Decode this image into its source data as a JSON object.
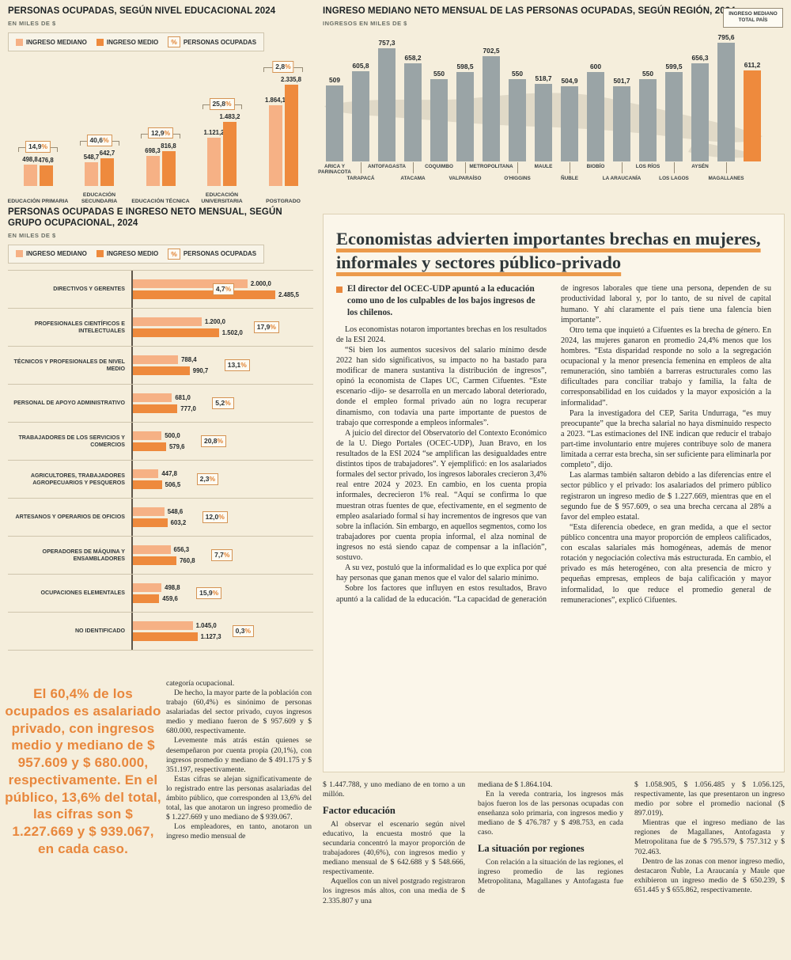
{
  "symbols": {
    "percent": "%"
  },
  "colors": {
    "mediano": "#f6b185",
    "medio": "#ee8a3d",
    "gray": "#9aa4a6",
    "accent": "#e8873c"
  },
  "chart_data": [
    {
      "id": "education",
      "type": "bar",
      "title": "PERSONAS OCUPADAS, SEGÚN NIVEL EDUCACIONAL 2024",
      "subtitle": "EN MILES DE $",
      "legend_pct": "PERSONAS OCUPADAS",
      "categories": [
        "EDUCACIÓN PRIMARIA",
        "EDUCACIÓN SECUNDARIA",
        "EDUCACIÓN TÉCNICA",
        "EDUCACIÓN UNIVERSITARIA",
        "POSTGRADO"
      ],
      "series": [
        {
          "name": "INGRESO MEDIANO",
          "values": [
            498.8,
            548.7,
            698.3,
            1121.2,
            1864.1
          ],
          "labels": [
            "498,8",
            "548,7",
            "698,3",
            "1.121,2",
            "1.864,1"
          ]
        },
        {
          "name": "INGRESO MEDIO",
          "values": [
            476.8,
            642.7,
            816.8,
            1483.2,
            2335.8
          ],
          "labels": [
            "476,8",
            "642,7",
            "816,8",
            "1.483,2",
            "2.335,8"
          ]
        }
      ],
      "pct": [
        "14,9%",
        "40,6%",
        "12,9%",
        "25,8%",
        "2,8%"
      ],
      "ylim": [
        0,
        2335.8
      ]
    },
    {
      "id": "regions",
      "type": "bar",
      "title": "INGRESO MEDIANO NETO MENSUAL DE LAS PERSONAS OCUPADAS, SEGÚN REGIÓN, 2024",
      "subtitle": "INGRESOS EN MILES DE $",
      "callout": "INGRESO MEDIANO TOTAL PAÍS",
      "categories": [
        "ARICA Y PARINACOTA",
        "TARAPACÁ",
        "ANTOFAGASTA",
        "ATACAMA",
        "COQUIMBO",
        "VALPARAÍSO",
        "METROPOLITANA",
        "O'HIGGINS",
        "MAULE",
        "ÑUBLE",
        "BIOBÍO",
        "LA ARAUCANÍA",
        "LOS RÍOS",
        "LOS LAGOS",
        "AYSÉN",
        "MAGALLANES",
        "TOTAL PAÍS"
      ],
      "values": [
        509,
        605.8,
        757.3,
        658.2,
        550,
        598.5,
        702.5,
        550,
        518.7,
        504.9,
        600,
        501.7,
        550,
        599.5,
        656.3,
        795.6,
        611.2
      ],
      "labels": [
        "509",
        "605,8",
        "757,3",
        "658,2",
        "550",
        "598,5",
        "702,5",
        "550",
        "518,7",
        "504,9",
        "600",
        "501,7",
        "550",
        "599,5",
        "656,3",
        "795,6",
        "611,2"
      ],
      "highlight_index": 16,
      "ylim": [
        0,
        800
      ]
    },
    {
      "id": "occupations",
      "type": "bar-horizontal",
      "title": "PERSONAS OCUPADAS E INGRESO NETO MENSUAL, SEGÚN GRUPO OCUPACIONAL, 2024",
      "subtitle": "EN MILES DE $",
      "legend_pct": "PERSONAS OCUPADAS",
      "categories": [
        "DIRECTIVOS Y GERENTES",
        "PROFESIONALES CIENTÍFICOS E INTELECTUALES",
        "TÉCNICOS Y PROFESIONALES DE NIVEL MEDIO",
        "PERSONAL DE APOYO ADMINISTRATIVO",
        "TRABAJADORES DE LOS SERVICIOS Y COMERCIOS",
        "AGRICULTORES, TRABAJADORES AGROPECUARIOS Y PESQUEROS",
        "ARTESANOS Y OPERARIOS DE OFICIOS",
        "OPERADORES DE MÁQUINA Y ENSAMBLADORES",
        "OCUPACIONES ELEMENTALES",
        "NO IDENTIFICADO"
      ],
      "series": [
        {
          "name": "INGRESO MEDIANO",
          "values": [
            2000.0,
            1200.0,
            788.4,
            681.0,
            500.0,
            447.8,
            548.6,
            656.3,
            498.8,
            1045.0
          ],
          "labels": [
            "2.000,0",
            "1.200,0",
            "788,4",
            "681,0",
            "500,0",
            "447,8",
            "548,6",
            "656,3",
            "498,8",
            "1.045,0"
          ]
        },
        {
          "name": "INGRESO MEDIO",
          "values": [
            2485.5,
            1502.0,
            990.7,
            777.0,
            579.6,
            506.5,
            603.2,
            760.8,
            459.6,
            1127.3
          ],
          "labels": [
            "2.485,5",
            "1.502,0",
            "990,7",
            "777,0",
            "579,6",
            "506,5",
            "603,2",
            "760,8",
            "459,6",
            "1.127,3"
          ]
        }
      ],
      "pct": [
        "4,7%",
        "17,9%",
        "13,1%",
        "5,2%",
        "20,8%",
        "2,3%",
        "12,0%",
        "7,7%",
        "15,9%",
        "0,3%"
      ],
      "xlim": [
        0,
        2485.5
      ]
    }
  ],
  "article": {
    "headline": "Economistas advierten importantes brechas en mujeres, informales y sectores público-privado",
    "lead": "El director del OCEC-UDP apuntó a la educación como uno de los culpables de los bajos ingresos de los chilenos.",
    "paragraphs": [
      "Los economistas notaron importantes brechas en los resultados de la ESI 2024.",
      "“Si bien los aumentos sucesivos del salario mínimo desde 2022 han sido significativos, su impacto no ha bastado para modificar de manera sustantiva la distribución de ingresos”, opinó la economista de Clapes UC, Carmen Cifuentes. “Este escenario -dijo- se desarrolla en un mercado laboral deteriorado, donde el empleo formal privado aún no logra recuperar dinamismo, con todavía una parte importante de puestos de trabajo que corresponde a empleos informales”.",
      "A juicio del director del Observatorio del Contexto Económico de la U. Diego Portales (OCEC-UDP), Juan Bravo, en los resultados de la ESI 2024 “se amplifican las desigualdades entre distintos tipos de trabajadores”. Y ejemplificó: en los asalariados formales del sector privado, los ingresos laborales crecieron 3,4% real entre 2024 y 2023. En cambio, en los cuenta propia informales, decrecieron 1% real. “Aquí se confirma lo que muestran otras fuentes de que, efectivamente, en el segmento de empleo asalariado formal sí hay incrementos de ingresos que van sobre la inflación. Sin embargo, en aquellos segmentos, como los trabajadores por cuenta propia informal, el alza nominal de ingresos no está siendo capaz de compensar a la inflación”, sostuvo.",
      "A su vez, postuló que la informalidad es lo que explica por qué hay personas que ganan menos que el valor del salario mínimo.",
      "Sobre los factores que influyen en estos resultados, Bravo apuntó a la calidad de la educación. “La capacidad de generación de ingresos laborales que tiene una persona, dependen de su productividad laboral y, por lo tanto, de su nivel de capital humano. Y ahí claramente el país tiene una falencia bien importante”.",
      "Otro tema que inquietó a Cifuentes es la brecha de género. En 2024, las mujeres ganaron en promedio 24,4% menos que los hombres. “Esta disparidad responde no solo a la segregación ocupacional y la menor presencia femenina en empleos de alta remuneración, sino también a barreras estructurales como las dificultades para conciliar trabajo y familia, la falta de corresponsabilidad en los cuidados y la mayor exposición a la informalidad”.",
      "Para la investigadora del CEP, Sarita Undurraga, “es muy preocupante” que la brecha salarial no haya disminuido respecto a 2023. “Las estimaciones del INE indican que reducir el trabajo part-time involuntario entre mujeres contribuye solo de manera limitada a cerrar esta brecha, sin ser suficiente para eliminarla por completo”, dijo.",
      "Las alarmas también saltaron debido a las diferencias entre el sector público y el privado: los asalariados del primero público registraron un ingreso medio de $ 1.227.669, mientras que en el segundo fue de $ 957.609, o sea una brecha cercana al 28% a favor del empleo estatal.",
      "“Esta diferencia obedece, en gran medida, a que el sector público concentra una mayor proporción de empleos calificados, con escalas salariales más homogéneas, además de menor rotación y negociación colectiva más estructurada. En cambio, el privado es más heterogéneo, con alta presencia de micro y pequeñas empresas, empleos de baja calificación y mayor informalidad, lo que reduce el promedio general de remuneraciones”, explicó Cifuentes."
    ]
  },
  "bottom": {
    "pullquote": "El 60,4% de los ocupados es asalariado privado, con ingresos medio y mediano de $ 957.609 y $ 680.000, respectivamente. En el público, 13,6% del total, las cifras son $ 1.227.669 y $ 939.067, en cada caso.",
    "columns": [
      [
        {
          "t": "p",
          "s": "categoría ocupacional."
        },
        {
          "t": "p",
          "s": "De hecho, la mayor parte de la población con trabajo (60,4%) es sinónimo de personas asalariadas del sector privado, cuyos ingresos medio y mediano fueron de $ 957.609 y $ 680.000, respectivamente."
        },
        {
          "t": "p",
          "s": "Levemente más atrás están quienes se desempeñaron por cuenta propia (20,1%), con ingresos promedio y mediano de $ 491.175 y $ 351.197, respectivamente."
        },
        {
          "t": "p",
          "s": "Estas cifras se alejan significativamente de lo registrado entre las personas asalariadas del ámbito público, que corresponden al 13,6% del total, las que anotaron un ingreso promedio de $ 1.227.669 y uno mediano de $ 939.067."
        },
        {
          "t": "p",
          "s": "Los empleadores, en tanto, anotaron un ingreso medio mensual de"
        }
      ],
      [
        {
          "t": "p",
          "s": "$ 1.447.788, y uno mediano de en torno a un millón."
        },
        {
          "t": "h",
          "s": "Factor educación"
        },
        {
          "t": "p",
          "s": "Al observar el escenario según nivel educativo, la encuesta mostró que la secundaria concentró la mayor proporción de trabajadores (40,6%), con ingresos medio y mediano mensual de $ 642.688 y $ 548.666, respectivamente."
        },
        {
          "t": "p",
          "s": "Aquellos con un nivel postgrado registraron los ingresos más altos, con una media de $ 2.335.807 y una"
        }
      ],
      [
        {
          "t": "p",
          "s": "mediana de $ 1.864.104."
        },
        {
          "t": "p",
          "s": "En la vereda contraria, los ingresos más bajos fueron los de las personas ocupadas con enseñanza solo primaria, con ingresos medio y mediano de $ 476.787 y $ 498.753, en cada caso."
        },
        {
          "t": "h",
          "s": "La situación por regiones"
        },
        {
          "t": "p",
          "s": "Con relación a la situación de las regiones, el ingreso promedio de las regiones Metropolitana, Magallanes y Antofagasta fue de"
        }
      ],
      [
        {
          "t": "p",
          "s": "$ 1.058.905, $ 1.056.485 y $ 1.056.125, respectivamente, las que presentaron un ingreso medio por sobre el promedio nacional ($ 897.019)."
        },
        {
          "t": "p",
          "s": "Mientras que el ingreso mediano de las regiones de Magallanes, Antofagasta y Metropolitana fue de $ 795.579, $ 757.312 y $ 702.463."
        },
        {
          "t": "p",
          "s": "Dentro de las zonas con menor ingreso medio, destacaron Ñuble, La Araucanía y Maule que exhibieron un ingreso medio de $ 650.239, $ 651.445 y $ 655.862, respectivamente."
        }
      ]
    ]
  }
}
